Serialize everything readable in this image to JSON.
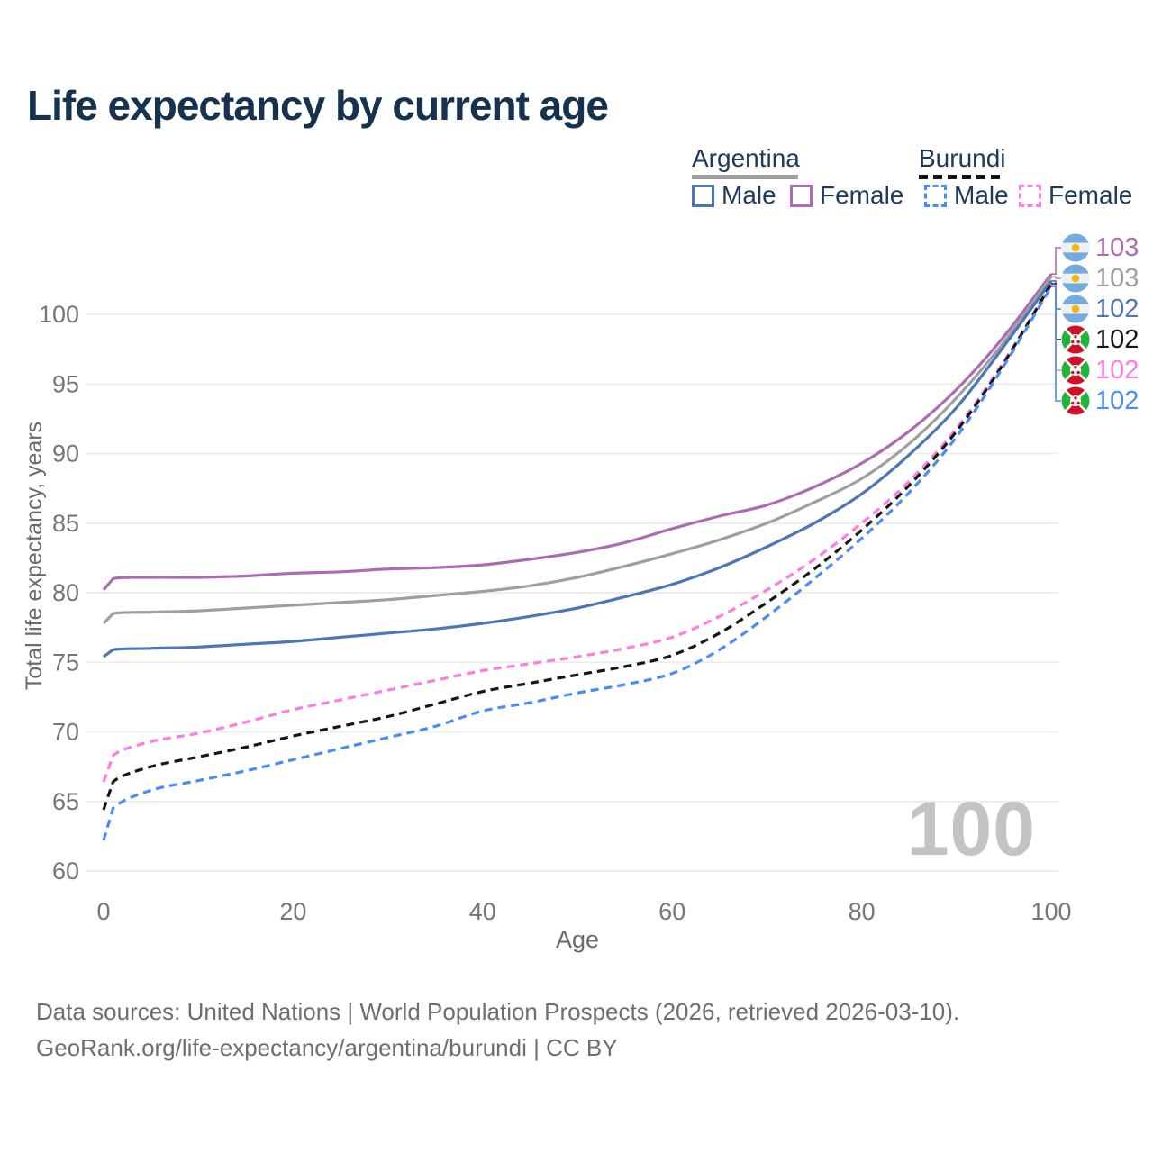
{
  "page": {
    "title": "Life expectancy by current age"
  },
  "legend": {
    "groups": [
      {
        "country": "Argentina",
        "style": "solid",
        "male_label": "Male",
        "female_label": "Female"
      },
      {
        "country": "Burundi",
        "style": "dashed",
        "male_label": "Male",
        "female_label": "Female"
      }
    ]
  },
  "end_labels": [
    {
      "value": "103",
      "flag": "argentina",
      "color": "#ad6cb2",
      "series_index": 0
    },
    {
      "value": "103",
      "flag": "argentina",
      "color": "#9f9f9f",
      "series_index": 1
    },
    {
      "value": "102",
      "flag": "argentina",
      "color": "#4d76b6",
      "series_index": 2
    },
    {
      "value": "102",
      "flag": "burundi",
      "color": "#161616",
      "series_index": 4
    },
    {
      "value": "102",
      "flag": "burundi",
      "color": "#fd7de2",
      "series_index": 3
    },
    {
      "value": "102",
      "flag": "burundi",
      "color": "#4a8cf7",
      "series_index": 5
    }
  ],
  "watermark": "100",
  "footer": {
    "line1": "Data sources: United Nations | World Population Prospects (2026, retrieved 2026-03-10).",
    "line2": "GeoRank.org/life-expectancy/argentina/burundi | CC BY"
  },
  "chart_data": {
    "type": "line",
    "title": "Life expectancy by current age",
    "xlabel": "Age",
    "ylabel": "Total life expectancy, years",
    "xlim": [
      0,
      100
    ],
    "ylim": [
      60,
      100
    ],
    "grid": "horizontal-only",
    "legend_position": "top-right",
    "xticks": [
      0,
      20,
      40,
      60,
      80,
      100
    ],
    "yticks": [
      60,
      65,
      70,
      75,
      80,
      85,
      90,
      95,
      100
    ],
    "x": [
      0,
      1,
      5,
      10,
      15,
      20,
      25,
      30,
      35,
      40,
      45,
      50,
      55,
      60,
      65,
      70,
      75,
      80,
      85,
      90,
      95,
      100
    ],
    "series": [
      {
        "name": "Argentina Female",
        "country": "Argentina",
        "sex": "Female",
        "color": "#ad6cb2",
        "dash": false,
        "values": [
          80.2,
          81.0,
          81.1,
          81.1,
          81.2,
          81.4,
          81.5,
          81.7,
          81.8,
          82.0,
          82.4,
          82.9,
          83.6,
          84.6,
          85.5,
          86.3,
          87.6,
          89.3,
          91.6,
          94.6,
          98.4,
          102.9
        ]
      },
      {
        "name": "Argentina Both sexes",
        "country": "Argentina",
        "sex": "Both",
        "color": "#9f9f9f",
        "dash": false,
        "values": [
          77.8,
          78.5,
          78.6,
          78.7,
          78.9,
          79.1,
          79.3,
          79.5,
          79.8,
          80.1,
          80.5,
          81.1,
          81.9,
          82.8,
          83.8,
          85.0,
          86.5,
          88.2,
          90.7,
          94.0,
          98.0,
          102.7
        ]
      },
      {
        "name": "Argentina Male",
        "country": "Argentina",
        "sex": "Male",
        "color": "#4d76b6",
        "dash": false,
        "values": [
          75.4,
          75.9,
          76.0,
          76.1,
          76.3,
          76.5,
          76.8,
          77.1,
          77.4,
          77.8,
          78.3,
          78.9,
          79.7,
          80.6,
          81.8,
          83.3,
          85.0,
          87.1,
          89.9,
          93.3,
          97.7,
          102.4
        ]
      },
      {
        "name": "Burundi Female",
        "country": "Burundi",
        "sex": "Female",
        "color": "#fd7de2",
        "dash": true,
        "values": [
          66.4,
          68.3,
          69.3,
          69.9,
          70.7,
          71.6,
          72.3,
          73.0,
          73.7,
          74.4,
          74.9,
          75.4,
          76.0,
          76.8,
          78.3,
          80.2,
          82.4,
          85.0,
          88.0,
          91.8,
          96.6,
          102.1
        ]
      },
      {
        "name": "Burundi Both sexes",
        "country": "Burundi",
        "sex": "Both",
        "color": "#161616",
        "dash": true,
        "values": [
          64.4,
          66.4,
          67.5,
          68.2,
          68.9,
          69.7,
          70.4,
          71.1,
          72.0,
          72.9,
          73.5,
          74.1,
          74.7,
          75.5,
          77.1,
          79.3,
          81.7,
          84.5,
          87.7,
          91.6,
          96.5,
          102.2
        ]
      },
      {
        "name": "Burundi Male",
        "country": "Burundi",
        "sex": "Male",
        "color": "#4a8cf7",
        "dash": true,
        "values": [
          62.2,
          64.5,
          65.8,
          66.5,
          67.2,
          68.0,
          68.8,
          69.6,
          70.4,
          71.5,
          72.1,
          72.8,
          73.4,
          74.2,
          75.9,
          78.3,
          81.0,
          83.9,
          87.2,
          91.2,
          96.3,
          102.0
        ]
      }
    ]
  }
}
